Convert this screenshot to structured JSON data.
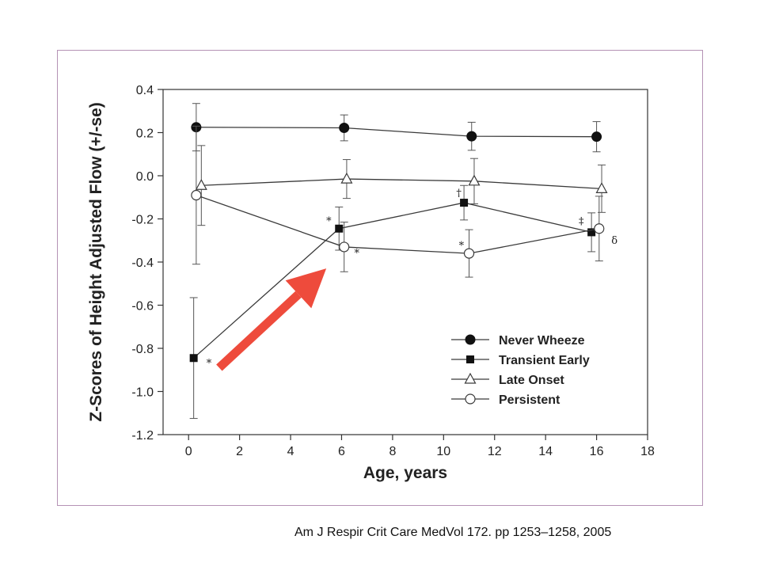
{
  "colors": {
    "frame_border": "#b592b5",
    "series_stroke": "#3a3a3a",
    "arrow": "#ee4b3c"
  },
  "citation": "Am J Respir Crit Care MedVol 172. pp 1253–1258, 2005",
  "chart_data": {
    "type": "line",
    "xlabel": "Age, years",
    "ylabel": "Z-Scores of Height Adjusted Flow (+/-se)",
    "xlim": [
      -1,
      18
    ],
    "ylim": [
      -1.2,
      0.4
    ],
    "xticks": [
      0,
      2,
      4,
      6,
      8,
      10,
      12,
      14,
      16,
      18
    ],
    "yticks": [
      0.4,
      0.2,
      0.0,
      -0.2,
      -0.4,
      -0.6,
      -0.8,
      -1.0,
      -1.2
    ],
    "ytick_labels": [
      "0.4",
      "0.2",
      "0.0",
      "-0.2",
      "-0.4",
      "-0.6",
      "-0.8",
      "-1.0",
      "-1.2"
    ],
    "grid": false,
    "legend_position": "bottom-right",
    "series": [
      {
        "name": "Never Wheeze",
        "marker": "filled-circle",
        "points": [
          {
            "x": 0.3,
            "y": 0.225,
            "err": 0.11
          },
          {
            "x": 6.1,
            "y": 0.222,
            "err": 0.06
          },
          {
            "x": 11.1,
            "y": 0.183,
            "err": 0.065
          },
          {
            "x": 16.0,
            "y": 0.181,
            "err": 0.07
          }
        ]
      },
      {
        "name": "Transient Early",
        "marker": "filled-square",
        "points": [
          {
            "x": 0.2,
            "y": -0.845,
            "err": 0.28
          },
          {
            "x": 5.9,
            "y": -0.245,
            "err": 0.1
          },
          {
            "x": 10.8,
            "y": -0.125,
            "err": 0.08
          },
          {
            "x": 15.8,
            "y": -0.262,
            "err": 0.09
          }
        ]
      },
      {
        "name": "Late Onset",
        "marker": "open-triangle",
        "points": [
          {
            "x": 0.5,
            "y": -0.045,
            "err": 0.185
          },
          {
            "x": 6.2,
            "y": -0.015,
            "err": 0.09
          },
          {
            "x": 11.2,
            "y": -0.025,
            "err": 0.105
          },
          {
            "x": 16.2,
            "y": -0.06,
            "err": 0.11
          }
        ]
      },
      {
        "name": "Persistent",
        "marker": "open-circle",
        "points": [
          {
            "x": 0.3,
            "y": -0.09,
            "err": 0.32
          },
          {
            "x": 6.1,
            "y": -0.33,
            "err": 0.115
          },
          {
            "x": 11.0,
            "y": -0.36,
            "err": 0.11
          },
          {
            "x": 16.1,
            "y": -0.245,
            "err": 0.15
          }
        ]
      }
    ],
    "annotations": [
      {
        "text": "*",
        "x": 0.8,
        "y": -0.885
      },
      {
        "text": "*",
        "x": 5.5,
        "y": -0.225
      },
      {
        "text": "*",
        "x": 6.6,
        "y": -0.375
      },
      {
        "text": "†",
        "x": 10.6,
        "y": -0.095
      },
      {
        "text": "*",
        "x": 10.7,
        "y": -0.34
      },
      {
        "text": "‡",
        "x": 15.4,
        "y": -0.225
      },
      {
        "text": "δ",
        "x": 16.7,
        "y": -0.315
      }
    ],
    "arrow": {
      "from": {
        "x": 1.2,
        "y": -0.89
      },
      "to": {
        "x": 5.4,
        "y": -0.43
      }
    }
  }
}
